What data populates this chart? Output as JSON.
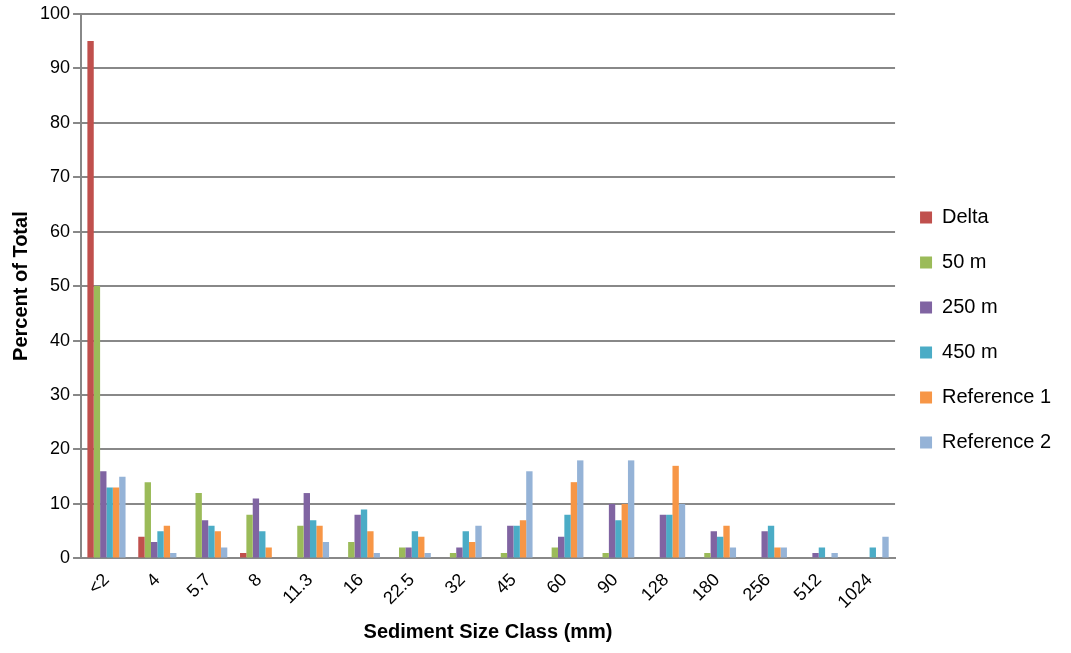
{
  "chart_data": {
    "type": "bar",
    "xlabel": "Sediment Size Class (mm)",
    "ylabel": "Percent of Total",
    "categories": [
      "<2",
      "4",
      "5.7",
      "8",
      "11.3",
      "16",
      "22.5",
      "32",
      "45",
      "60",
      "90",
      "128",
      "180",
      "256",
      "512",
      "1024"
    ],
    "series": [
      {
        "name": "Delta",
        "color": "#c0504d",
        "values": [
          95,
          4,
          0,
          1,
          0,
          0,
          0,
          0,
          0,
          0,
          0,
          0,
          0,
          0,
          0,
          0
        ]
      },
      {
        "name": "50 m",
        "color": "#9bbb59",
        "values": [
          50,
          14,
          12,
          8,
          6,
          3,
          2,
          1,
          1,
          2,
          1,
          0,
          1,
          0,
          0,
          0
        ]
      },
      {
        "name": "250 m",
        "color": "#8064a2",
        "values": [
          16,
          3,
          7,
          11,
          12,
          8,
          2,
          2,
          6,
          4,
          10,
          8,
          5,
          5,
          1,
          0
        ]
      },
      {
        "name": "450 m",
        "color": "#4bacc6",
        "values": [
          13,
          5,
          6,
          5,
          7,
          9,
          5,
          5,
          6,
          8,
          7,
          8,
          4,
          6,
          2,
          2
        ]
      },
      {
        "name": "Reference 1",
        "color": "#f79646",
        "values": [
          13,
          6,
          5,
          2,
          6,
          5,
          4,
          3,
          7,
          14,
          10,
          17,
          6,
          2,
          0,
          0
        ]
      },
      {
        "name": "Reference 2",
        "color": "#95b3d7",
        "values": [
          15,
          1,
          2,
          0,
          3,
          1,
          1,
          6,
          16,
          18,
          18,
          10,
          2,
          2,
          1,
          4
        ]
      }
    ],
    "ylim": [
      0,
      100
    ],
    "yticks": [
      0,
      10,
      20,
      30,
      40,
      50,
      60,
      70,
      80,
      90,
      100
    ],
    "grid": "y",
    "legend": "right"
  }
}
